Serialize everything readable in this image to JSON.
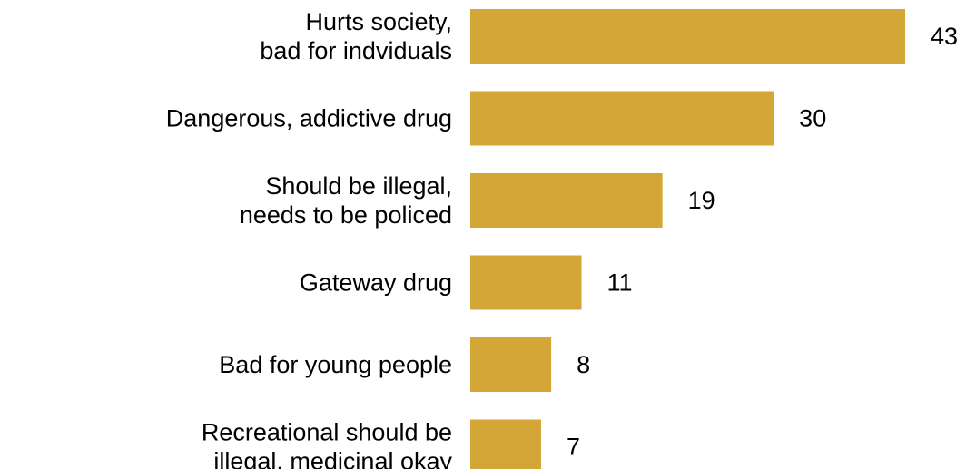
{
  "chart_data": {
    "type": "bar",
    "orientation": "horizontal",
    "categories": [
      [
        "Hurts society,",
        "bad for indviduals"
      ],
      [
        "Dangerous, addictive drug"
      ],
      [
        "Should be illegal,",
        "needs to be policed"
      ],
      [
        "Gateway drug"
      ],
      [
        "Bad for young people"
      ],
      [
        "Recreational should be",
        "illegal, medicinal okay"
      ]
    ],
    "values": [
      43,
      30,
      19,
      11,
      8,
      7
    ],
    "value_labels": [
      "43",
      "30",
      "19",
      "11",
      "8",
      "7"
    ],
    "bar_color": "#D4A637",
    "grid": false,
    "legend": "none",
    "xlim": [
      0,
      43
    ]
  }
}
